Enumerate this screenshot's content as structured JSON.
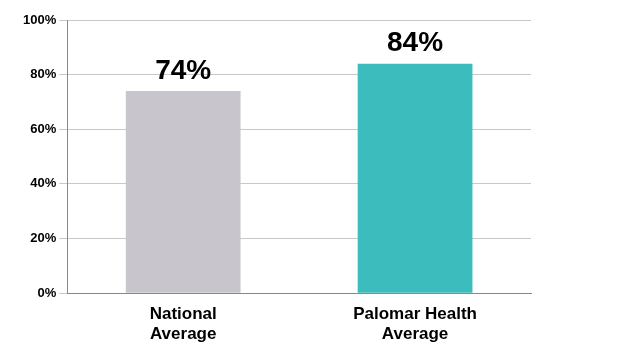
{
  "chart_data": {
    "type": "bar",
    "categories": [
      "National Average",
      "Palomar Health Average"
    ],
    "values": [
      74,
      84
    ],
    "value_labels": [
      "74%",
      "84%"
    ],
    "colors": [
      "#c9c5cd",
      "#3cbcbc"
    ],
    "ylim": [
      0,
      100
    ],
    "yticks": [
      {
        "value": 0,
        "label": "0%"
      },
      {
        "value": 20,
        "label": "20%"
      },
      {
        "value": 40,
        "label": "40%"
      },
      {
        "value": 60,
        "label": "60%"
      },
      {
        "value": 80,
        "label": "80%"
      },
      {
        "value": 100,
        "label": "100%"
      }
    ],
    "grid": true,
    "data_labels": true
  }
}
